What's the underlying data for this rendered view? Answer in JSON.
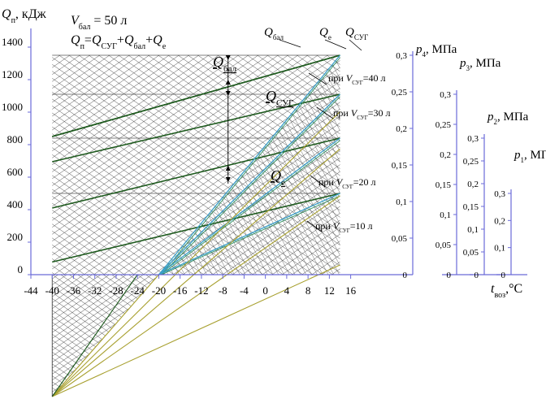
{
  "chart_data": {
    "type": "line",
    "title": "",
    "ylabel": {
      "q": "Q",
      "sub": "п",
      "unit": ", кДж"
    },
    "xlabel": {
      "t": "t",
      "sub": "воз",
      "unit": ",°С"
    },
    "xlim": [
      -44,
      20
    ],
    "ylim": [
      -750,
      1500
    ],
    "x_ticks": [
      "-44",
      "-40",
      "-36",
      "-32",
      "-28",
      "-24",
      "-20",
      "-16",
      "-12",
      "-8",
      "-4",
      "0",
      "4",
      "8",
      "12",
      "16"
    ],
    "y_ticks": [
      "0",
      "200",
      "400",
      "600",
      "800",
      "1000",
      "1200",
      "1400"
    ],
    "header": {
      "v_var": "V",
      "v_sub": "бал",
      "v_rest": " = 50 л",
      "eq": [
        {
          "t": "Q",
          "i": true
        },
        {
          "t": "п",
          "sub": true
        },
        {
          "t": "=",
          "i": false
        },
        {
          "t": "Q",
          "i": true
        },
        {
          "t": "СУГ",
          "sub": true
        },
        {
          "t": "+",
          "i": false
        },
        {
          "t": "Q",
          "i": true
        },
        {
          "t": "бал",
          "sub": true
        },
        {
          "t": "+",
          "i": false
        },
        {
          "t": "Q",
          "i": true
        },
        {
          "t": "е",
          "sub": true
        }
      ]
    },
    "q_bal": 1350,
    "series_levels": [
      {
        "name_pre": "при ",
        "name_var": "V",
        "name_sub": "СУГ",
        "name_post": "=40 л",
        "total": 1350,
        "base": 1110,
        "c0": 850
      },
      {
        "name_pre": "при ",
        "name_var": "V",
        "name_sub": "СУГ",
        "name_post": "=30 л",
        "total": 1110,
        "base": 840,
        "c0": 695
      },
      {
        "name_pre": "при ",
        "name_var": "V",
        "name_sub": "СУГ",
        "name_post": "=20 л",
        "total": 840,
        "base": 500,
        "c0": 410
      },
      {
        "name_pre": "при ",
        "name_var": "V",
        "name_sub": "СУГ",
        "name_post": "=10 л",
        "total": 500,
        "base": 0,
        "c0": 78
      }
    ],
    "top_labels": [
      {
        "q": "Q",
        "sub": "бал"
      },
      {
        "q": "Q",
        "sub": "е"
      },
      {
        "q": "Q",
        "sub": "СУГ"
      }
    ],
    "annotations": [
      {
        "q": "Q",
        "sub": "бал"
      },
      {
        "q": "Q",
        "sub": "СУГ"
      },
      {
        "q": "Q",
        "sub": "е"
      }
    ],
    "pressure_axes": [
      {
        "label_p": "p",
        "label_sub": "4",
        "unit": ", МПа",
        "ticks": [
          "0",
          "0,05",
          "0,1",
          "0,15",
          "0,2",
          "0,25",
          "0,3"
        ],
        "range_max": 0.3,
        "full_height": 1350
      },
      {
        "label_p": "p",
        "label_sub": "3",
        "unit": ", МПа",
        "ticks": [
          "0",
          "0,05",
          "0,1",
          "0,15",
          "0,2",
          "0,25",
          "0,3"
        ],
        "range_max": 0.3,
        "full_height": 1110
      },
      {
        "label_p": "p",
        "label_sub": "2",
        "unit": ", МПа",
        "ticks": [
          "0",
          "0,05",
          "0,1",
          "0,15",
          "0,2",
          "0,25",
          "0,3"
        ],
        "range_max": 0.3,
        "full_height": 840
      },
      {
        "label_p": "p",
        "label_sub": "1",
        "unit": ", МПа",
        "ticks": [
          "0",
          "0,1",
          "0,2",
          "0,3"
        ],
        "range_max": 0.3,
        "full_height": 500
      }
    ],
    "grid": false
  }
}
